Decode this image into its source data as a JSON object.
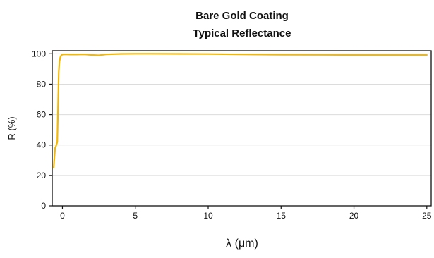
{
  "chart_data": {
    "type": "line",
    "title": [
      "Bare Gold Coating",
      "Typical Reflectance"
    ],
    "xlabel": "λ (μm)",
    "ylabel": "R (%)",
    "xlim": [
      -0.7,
      25.3
    ],
    "ylim": [
      0,
      102
    ],
    "xticks": [
      0,
      5,
      10,
      15,
      20,
      25
    ],
    "yticks": [
      0,
      20,
      40,
      60,
      80,
      100
    ],
    "grid": true,
    "series_color": "#f5b800",
    "series": [
      {
        "x": [
          -0.6,
          -0.5,
          -0.45,
          -0.35,
          -0.25,
          -0.2,
          -0.15,
          -0.08,
          0,
          0.2,
          0.5,
          1.0,
          1.5,
          2.0,
          2.5,
          3.0,
          4.0,
          5.0,
          6.0,
          8.0,
          10.0,
          12.0,
          15.0,
          18.0,
          20.0,
          22.0,
          25.0
        ],
        "y": [
          25,
          38,
          39,
          42,
          88,
          95,
          97.5,
          99,
          99.5,
          99.6,
          99.5,
          99.5,
          99.6,
          99.2,
          99.0,
          99.6,
          99.9,
          100,
          100,
          99.9,
          99.8,
          99.6,
          99.4,
          99.3,
          99.2,
          99.2,
          99.2
        ]
      }
    ]
  }
}
